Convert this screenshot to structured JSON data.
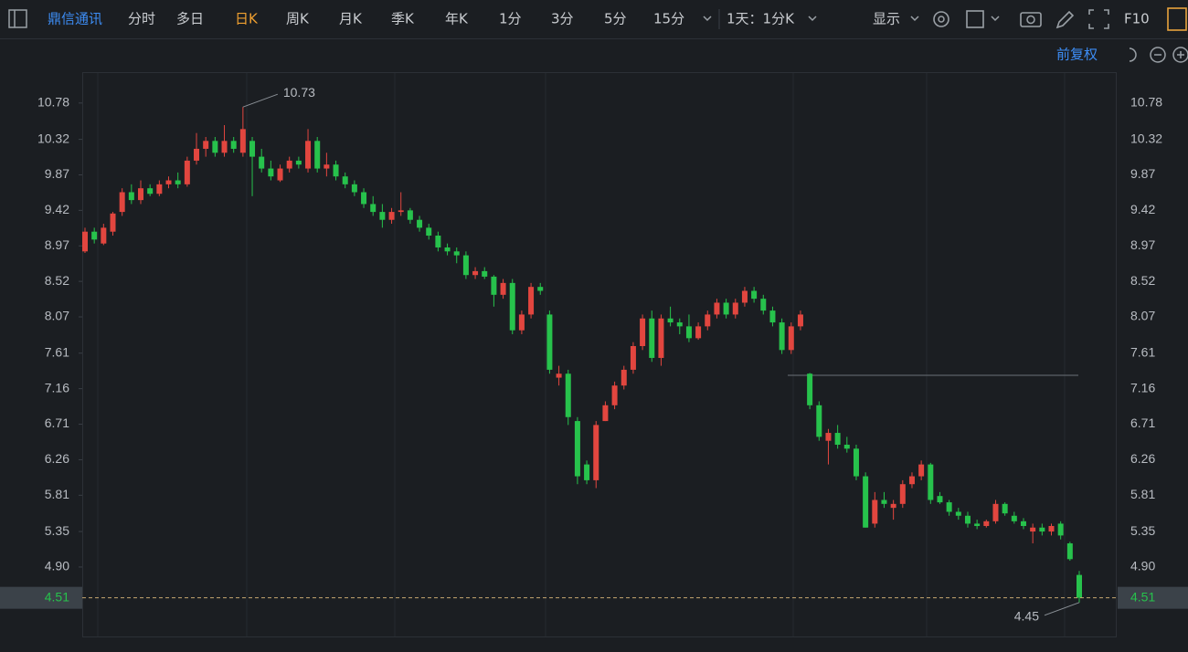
{
  "toolbar": {
    "stock": "鼎信通讯",
    "periods": [
      "分时",
      "多日",
      "日K",
      "周K",
      "月K",
      "季K",
      "年K",
      "1分",
      "3分",
      "5分",
      "15分"
    ],
    "selected_period": 2,
    "interval": "1天：1分K",
    "display": "显示",
    "f10": "F10"
  },
  "adjust": "前复权",
  "chart_data": {
    "type": "candlestick",
    "open": [
      8.9,
      9.15,
      9.0,
      9.15,
      9.4,
      9.65,
      9.55,
      9.7,
      9.63,
      9.75,
      9.8,
      9.75,
      10.05,
      10.2,
      10.3,
      10.15,
      10.3,
      10.15,
      10.3,
      10.1,
      9.95,
      9.8,
      9.95,
      10.05,
      9.95,
      10.3,
      9.95,
      10.0,
      9.85,
      9.75,
      9.65,
      9.5,
      9.4,
      9.3,
      9.4,
      9.42,
      9.3,
      9.2,
      9.1,
      8.95,
      8.9,
      8.85,
      8.6,
      8.65,
      8.58,
      8.35,
      8.5,
      7.9,
      8.1,
      8.45,
      8.1,
      7.3,
      7.35,
      6.75,
      6.2,
      6.0,
      6.75,
      6.95,
      7.2,
      7.4,
      7.7,
      8.05,
      7.55,
      8.05,
      8.0,
      7.95,
      7.8,
      7.95,
      8.1,
      8.25,
      8.1,
      8.25,
      8.4,
      8.3,
      8.15,
      8.0,
      7.65,
      7.95,
      7.35,
      6.95,
      6.5,
      6.6,
      6.45,
      6.4,
      6.05,
      5.45,
      5.75,
      5.65,
      5.7,
      5.95,
      6.05,
      6.2,
      5.8,
      5.72,
      5.6,
      5.55,
      5.45,
      5.42,
      5.48,
      5.7,
      5.55,
      5.48,
      5.35,
      5.4,
      5.35,
      5.45,
      5.2,
      4.8
    ],
    "high": [
      9.2,
      9.2,
      9.25,
      9.4,
      9.7,
      9.75,
      9.8,
      9.75,
      9.8,
      9.85,
      9.9,
      10.1,
      10.4,
      10.35,
      10.35,
      10.5,
      10.35,
      10.73,
      10.35,
      10.2,
      10.05,
      10.0,
      10.1,
      10.1,
      10.45,
      10.35,
      10.15,
      10.05,
      9.9,
      9.8,
      9.7,
      9.6,
      9.5,
      9.45,
      9.65,
      9.45,
      9.35,
      9.25,
      9.15,
      9.0,
      8.95,
      8.9,
      8.7,
      8.7,
      8.6,
      8.55,
      8.55,
      8.15,
      8.5,
      8.5,
      8.15,
      7.45,
      7.4,
      6.8,
      6.25,
      6.75,
      7.0,
      7.25,
      7.45,
      7.75,
      8.1,
      8.15,
      8.1,
      8.2,
      8.05,
      8.1,
      8.0,
      8.15,
      8.3,
      8.3,
      8.3,
      8.45,
      8.45,
      8.35,
      8.2,
      8.05,
      8.0,
      8.15,
      7.36,
      7.0,
      6.65,
      6.7,
      6.55,
      6.45,
      6.1,
      5.85,
      5.85,
      5.75,
      6.0,
      6.1,
      6.25,
      6.22,
      5.85,
      5.75,
      5.65,
      5.6,
      5.5,
      5.5,
      5.75,
      5.72,
      5.6,
      5.52,
      5.45,
      5.45,
      5.45,
      5.48,
      5.22,
      4.85
    ],
    "low": [
      8.88,
      9.0,
      8.98,
      9.1,
      9.35,
      9.5,
      9.5,
      9.6,
      9.6,
      9.7,
      9.7,
      9.72,
      10.0,
      10.1,
      10.1,
      10.1,
      10.15,
      10.1,
      9.6,
      9.9,
      9.8,
      9.78,
      9.9,
      9.95,
      9.9,
      9.9,
      9.85,
      9.8,
      9.7,
      9.6,
      9.45,
      9.35,
      9.2,
      9.25,
      9.35,
      9.25,
      9.15,
      9.05,
      8.9,
      8.85,
      8.75,
      8.55,
      8.55,
      8.55,
      8.2,
      8.3,
      7.85,
      7.85,
      8.05,
      8.35,
      7.35,
      7.2,
      6.7,
      5.95,
      5.95,
      5.9,
      6.75,
      6.9,
      7.15,
      7.35,
      7.65,
      7.5,
      7.45,
      7.95,
      7.85,
      7.75,
      7.78,
      7.9,
      8.05,
      8.05,
      8.05,
      8.2,
      8.25,
      8.1,
      7.95,
      7.6,
      7.6,
      7.9,
      6.9,
      6.5,
      6.2,
      6.4,
      6.35,
      6.0,
      5.4,
      5.4,
      5.65,
      5.5,
      5.65,
      5.9,
      6.0,
      5.7,
      5.7,
      5.55,
      5.5,
      5.4,
      5.38,
      5.4,
      5.45,
      5.55,
      5.45,
      5.38,
      5.2,
      5.3,
      5.3,
      5.25,
      4.98,
      4.45
    ],
    "close": [
      9.15,
      9.05,
      9.2,
      9.38,
      9.65,
      9.55,
      9.7,
      9.63,
      9.75,
      9.8,
      9.75,
      10.05,
      10.2,
      10.3,
      10.15,
      10.3,
      10.2,
      10.45,
      10.1,
      9.95,
      9.85,
      9.95,
      10.05,
      10.0,
      10.3,
      9.95,
      10.0,
      9.85,
      9.75,
      9.65,
      9.5,
      9.4,
      9.3,
      9.4,
      9.42,
      9.3,
      9.2,
      9.1,
      8.95,
      8.9,
      8.85,
      8.6,
      8.65,
      8.58,
      8.35,
      8.5,
      7.9,
      8.1,
      8.45,
      8.4,
      7.4,
      7.35,
      6.8,
      6.05,
      6.0,
      6.7,
      6.95,
      7.2,
      7.4,
      7.7,
      8.05,
      7.55,
      8.05,
      8.0,
      7.95,
      7.8,
      7.95,
      8.1,
      8.25,
      8.1,
      8.25,
      8.4,
      8.3,
      8.15,
      8.0,
      7.65,
      7.95,
      8.1,
      6.95,
      6.55,
      6.6,
      6.45,
      6.4,
      6.05,
      5.4,
      5.75,
      5.7,
      5.7,
      5.95,
      6.05,
      6.2,
      5.75,
      5.72,
      5.6,
      5.55,
      5.45,
      5.42,
      5.48,
      5.7,
      5.58,
      5.48,
      5.42,
      5.4,
      5.35,
      5.42,
      5.3,
      5.0,
      4.51
    ],
    "ylim": [
      4.02,
      11.16
    ],
    "yticks": [
      10.78,
      10.32,
      9.87,
      9.42,
      8.97,
      8.52,
      8.07,
      7.61,
      7.16,
      6.71,
      6.26,
      5.81,
      5.35,
      {
        "value": 4.9,
        "label": "4.90"
      }
    ],
    "up_color": "#e2463f",
    "down_color": "#27c24c"
  }
}
